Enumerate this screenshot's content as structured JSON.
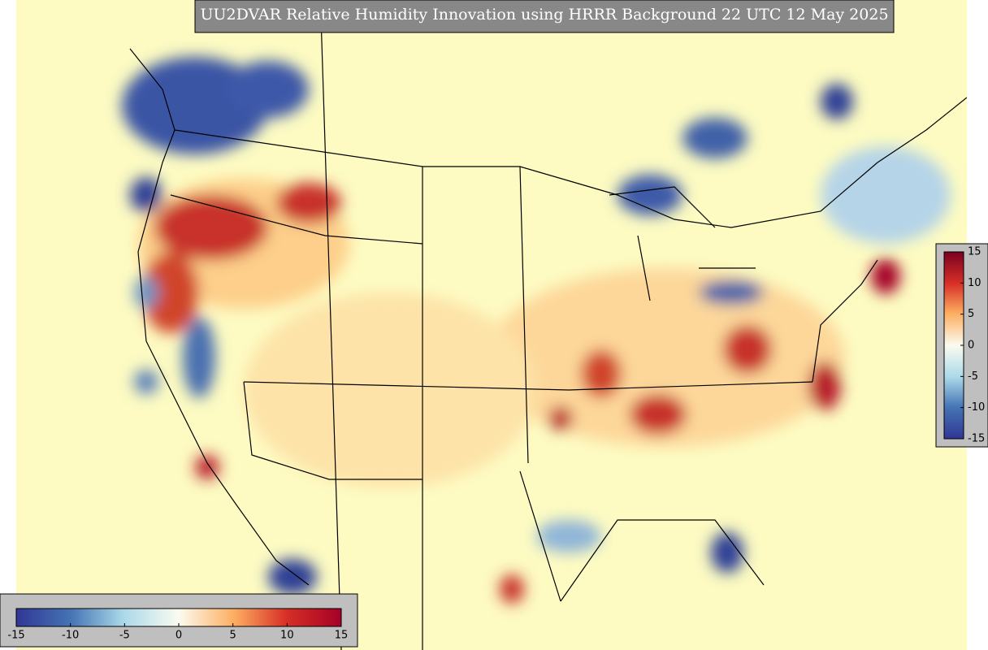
{
  "title": "UU2DVAR Relative Humidity Innovation using HRRR Background 22 UTC 12 May 2025",
  "colorbars": [
    {
      "orientation": "vertical",
      "limits": [
        -15,
        15
      ],
      "ticks": [
        15,
        10,
        5,
        0,
        -5,
        -10,
        -15
      ]
    },
    {
      "orientation": "horizontal",
      "limits": [
        -15,
        15
      ],
      "ticks": [
        -15,
        -10,
        -5,
        0,
        5,
        10,
        15
      ]
    }
  ]
}
